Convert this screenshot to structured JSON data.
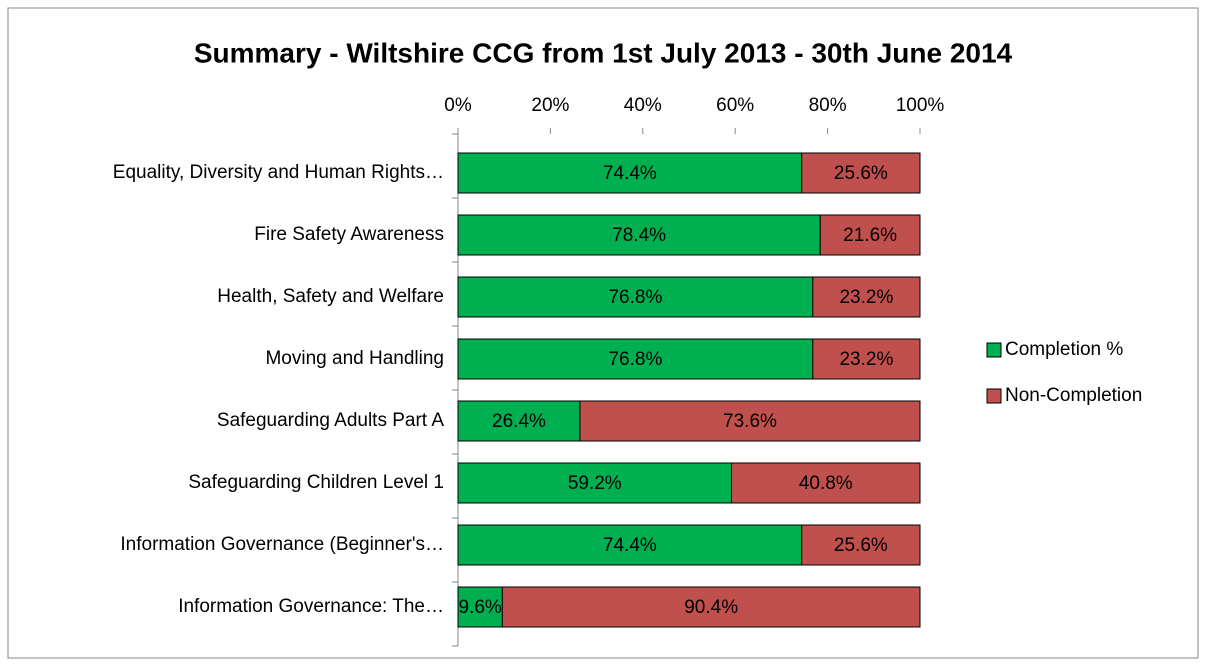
{
  "chart_data": {
    "type": "stacked_bar_horizontal",
    "title": "Summary - Wiltshire CCG from 1st July 2013 - 30th June 2014",
    "categories": [
      "Equality, Diversity and Human Rights…",
      "Fire Safety Awareness",
      "Health, Safety and Welfare",
      "Moving and Handling",
      "Safeguarding Adults Part A",
      "Safeguarding Children Level 1",
      "Information Governance (Beginner's…",
      "Information Governance: The…"
    ],
    "series": [
      {
        "name": "Completion %",
        "color": "#00b050",
        "values": [
          74.4,
          78.4,
          76.8,
          76.8,
          26.4,
          59.2,
          74.4,
          9.6
        ],
        "value_labels": [
          "74.4%",
          "78.4%",
          "76.8%",
          "76.8%",
          "26.4%",
          "59.2%",
          "74.4%",
          "9.6%"
        ]
      },
      {
        "name": "Non-Completion",
        "color": "#c0504d",
        "values": [
          25.6,
          21.6,
          23.2,
          23.2,
          73.6,
          40.8,
          25.6,
          90.4
        ],
        "value_labels": [
          "25.6%",
          "21.6%",
          "23.2%",
          "23.2%",
          "73.6%",
          "40.8%",
          "25.6%",
          "90.4%"
        ]
      }
    ],
    "xlim": [
      0,
      100
    ],
    "xticks": [
      {
        "value": 0,
        "label": "0%"
      },
      {
        "value": 20,
        "label": "20%"
      },
      {
        "value": 40,
        "label": "40%"
      },
      {
        "value": 60,
        "label": "60%"
      },
      {
        "value": 80,
        "label": "80%"
      },
      {
        "value": 100,
        "label": "100%"
      }
    ],
    "legend": "right"
  }
}
